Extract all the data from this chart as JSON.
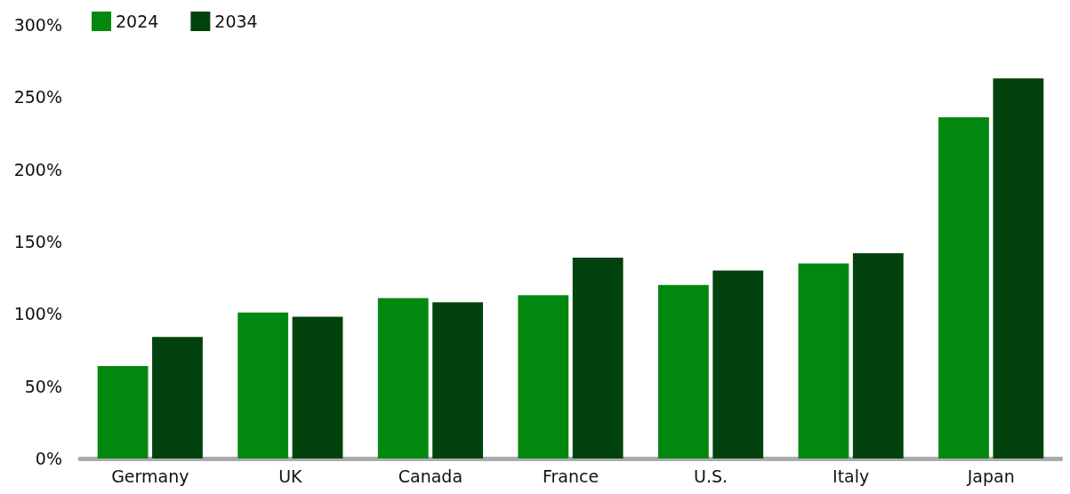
{
  "chart_data": {
    "type": "bar",
    "categories": [
      "Germany",
      "UK",
      "Canada",
      "France",
      "U.S.",
      "Italy",
      "Japan"
    ],
    "series": [
      {
        "name": "2024",
        "color": "#03880f",
        "values": [
          64,
          101,
          111,
          113,
          120,
          135,
          236
        ]
      },
      {
        "name": "2034",
        "color": "#02420e",
        "values": [
          84,
          98,
          108,
          139,
          130,
          142,
          263
        ]
      }
    ],
    "ylim": [
      0,
      300
    ],
    "yticks": [
      {
        "value": 0,
        "label": "0%"
      },
      {
        "value": 50,
        "label": "50%"
      },
      {
        "value": 100,
        "label": "100%"
      },
      {
        "value": 150,
        "label": "150%"
      },
      {
        "value": 200,
        "label": "200%"
      },
      {
        "value": 250,
        "label": "250%"
      },
      {
        "value": 300,
        "label": "300%"
      }
    ],
    "grid": false,
    "legend": "top left"
  }
}
